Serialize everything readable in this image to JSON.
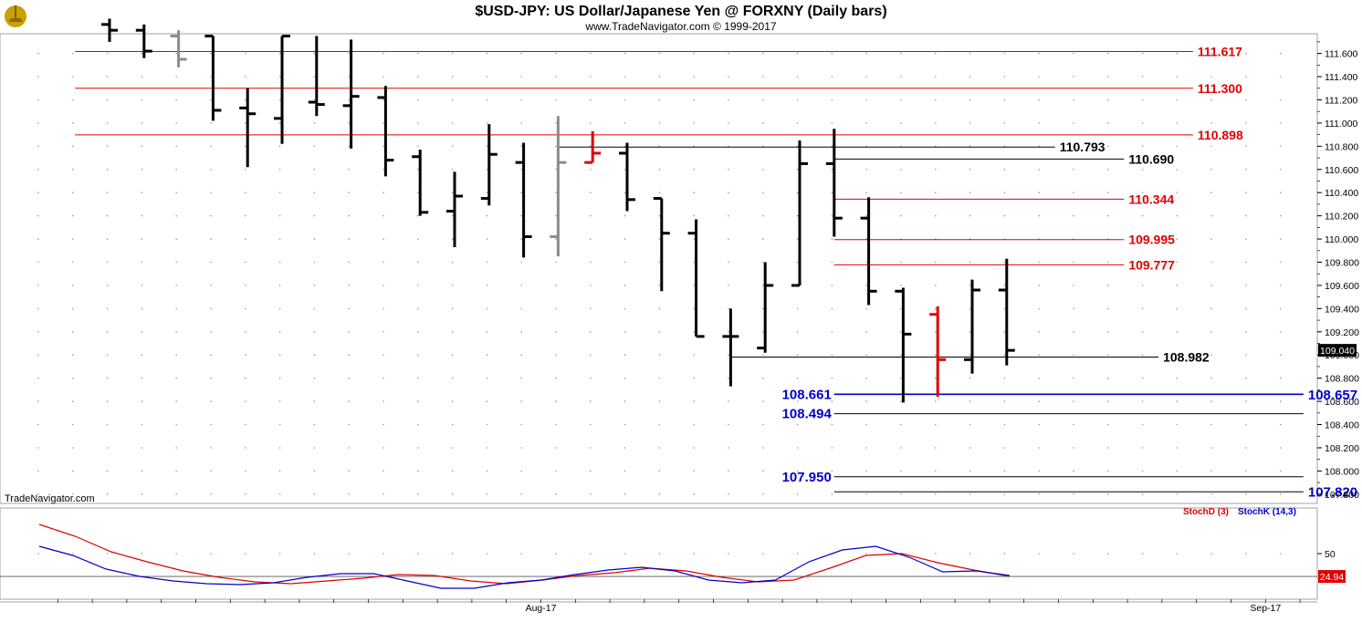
{
  "header": {
    "title": "$USD-JPY:  US Dollar/Japanese Yen @ FORXNY  (Daily bars)",
    "subtitle": "www.TradeNavigator.com © 1999-2017",
    "watermark": "TradeNavigator.com"
  },
  "colors": {
    "up": "#000000",
    "red": "#e00000",
    "gray": "#8c8c8c",
    "blue": "#0000cc",
    "stoch_d": "#dd0000",
    "stoch_k": "#0000cc"
  },
  "chart_data": [
    {
      "type": "ohlc",
      "title": "$USD-JPY:  US Dollar/Japanese Yen @ FORXNY  (Daily bars)",
      "ylim": [
        107.72,
        111.77
      ],
      "y_ticks": [
        "111.600",
        "111.400",
        "111.200",
        "111.000",
        "110.800",
        "110.600",
        "110.400",
        "110.200",
        "110.000",
        "109.800",
        "109.600",
        "109.400",
        "109.200",
        "109.000",
        "108.800",
        "108.600",
        "108.400",
        "108.200",
        "108.000",
        "107.800"
      ],
      "last_price": "109.040",
      "x_labels": [
        {
          "label": "Aug-17",
          "bar": 12.5
        },
        {
          "label": "Sep-17",
          "bar": 33.5
        }
      ],
      "bars": [
        {
          "o": 111.85,
          "h": 111.9,
          "l": 111.7,
          "c": 111.8,
          "color": "black"
        },
        {
          "o": 111.8,
          "h": 111.85,
          "l": 111.56,
          "c": 111.62,
          "color": "black"
        },
        {
          "o": 111.75,
          "h": 111.8,
          "l": 111.48,
          "c": 111.55,
          "color": "gray"
        },
        {
          "o": 111.75,
          "h": 111.75,
          "l": 111.02,
          "c": 111.11,
          "color": "black"
        },
        {
          "o": 111.13,
          "h": 111.3,
          "l": 110.62,
          "c": 111.08,
          "color": "black"
        },
        {
          "o": 111.04,
          "h": 111.75,
          "l": 110.82,
          "c": 111.75,
          "color": "black"
        },
        {
          "o": 111.18,
          "h": 111.75,
          "l": 111.06,
          "c": 111.16,
          "color": "black"
        },
        {
          "o": 111.15,
          "h": 111.72,
          "l": 110.78,
          "c": 111.23,
          "color": "black"
        },
        {
          "o": 111.22,
          "h": 111.32,
          "l": 110.54,
          "c": 110.68,
          "color": "black"
        },
        {
          "o": 110.71,
          "h": 110.77,
          "l": 110.2,
          "c": 110.23,
          "color": "black"
        },
        {
          "o": 110.24,
          "h": 110.58,
          "l": 109.93,
          "c": 110.37,
          "color": "black"
        },
        {
          "o": 110.35,
          "h": 110.99,
          "l": 110.29,
          "c": 110.73,
          "color": "black"
        },
        {
          "o": 110.66,
          "h": 110.83,
          "l": 109.84,
          "c": 110.02,
          "color": "black"
        },
        {
          "o": 110.02,
          "h": 111.06,
          "l": 109.85,
          "c": 110.66,
          "color": "gray"
        },
        {
          "o": 110.66,
          "h": 110.93,
          "l": 110.66,
          "c": 110.74,
          "color": "red"
        },
        {
          "o": 110.74,
          "h": 110.83,
          "l": 110.24,
          "c": 110.34,
          "color": "black"
        },
        {
          "o": 110.35,
          "h": 110.35,
          "l": 109.55,
          "c": 110.05,
          "color": "black"
        },
        {
          "o": 110.05,
          "h": 110.17,
          "l": 109.16,
          "c": 109.16,
          "color": "black"
        },
        {
          "o": 109.16,
          "h": 109.4,
          "l": 108.73,
          "c": 109.16,
          "color": "black"
        },
        {
          "o": 109.06,
          "h": 109.8,
          "l": 109.02,
          "c": 109.6,
          "color": "black"
        },
        {
          "o": 109.6,
          "h": 110.85,
          "l": 109.6,
          "c": 110.65,
          "color": "black"
        },
        {
          "o": 110.65,
          "h": 110.95,
          "l": 110.02,
          "c": 110.18,
          "color": "black"
        },
        {
          "o": 110.18,
          "h": 110.36,
          "l": 109.43,
          "c": 109.55,
          "color": "black"
        },
        {
          "o": 109.55,
          "h": 109.58,
          "l": 108.59,
          "c": 109.18,
          "color": "black"
        },
        {
          "o": 109.35,
          "h": 109.42,
          "l": 108.64,
          "c": 108.96,
          "color": "red"
        },
        {
          "o": 108.96,
          "h": 109.65,
          "l": 108.84,
          "c": 109.56,
          "color": "black"
        },
        {
          "o": 109.56,
          "h": 109.83,
          "l": 108.91,
          "c": 109.04,
          "color": "black"
        }
      ],
      "levels": [
        {
          "value": 111.617,
          "label": "111.617",
          "from_bar": -1,
          "to_bar": 31.4,
          "color": "red"
        },
        {
          "value": 111.3,
          "label": "111.300",
          "from_bar": -1,
          "to_bar": 31.4,
          "color": "red"
        },
        {
          "value": 110.898,
          "label": "110.898",
          "from_bar": -1,
          "to_bar": 31.4,
          "color": "red"
        },
        {
          "value": 110.793,
          "label": "110.793",
          "from_bar": 13,
          "to_bar": 27.4,
          "color": "black"
        },
        {
          "value": 110.69,
          "label": "110.690",
          "from_bar": 21,
          "to_bar": 29.4,
          "color": "black"
        },
        {
          "value": 110.344,
          "label": "110.344",
          "from_bar": 21,
          "to_bar": 29.4,
          "color": "red"
        },
        {
          "value": 109.995,
          "label": "109.995",
          "from_bar": 21,
          "to_bar": 29.4,
          "color": "red"
        },
        {
          "value": 109.777,
          "label": "109.777",
          "from_bar": 21,
          "to_bar": 29.4,
          "color": "red"
        },
        {
          "value": 108.982,
          "label": "108.982",
          "from_bar": 18,
          "to_bar": 30.4,
          "color": "black"
        },
        {
          "value": 108.661,
          "label": "108.661",
          "label_left": true,
          "from_bar": 21,
          "to_bar": 34.6,
          "color": "blue",
          "thick": true
        },
        {
          "value": 108.657,
          "label": "108.657",
          "from_bar": 21,
          "to_bar": 34.6,
          "color": "blue",
          "label_only_right": true
        },
        {
          "value": 108.494,
          "label": "108.494",
          "label_left": true,
          "from_bar": 21,
          "to_bar": 34.6,
          "color": "blue"
        },
        {
          "value": 107.95,
          "label": "107.950",
          "label_left": true,
          "from_bar": 21,
          "to_bar": 34.6,
          "color": "blue"
        },
        {
          "value": 107.82,
          "label": "107.820",
          "from_bar": 21,
          "to_bar": 34.6,
          "color": "blue"
        }
      ]
    },
    {
      "type": "line",
      "ylim": [
        0,
        100
      ],
      "y_ticks": [
        "50"
      ],
      "last_value": "24.94",
      "reference_line": 24.94,
      "legend": [
        "StochD (3)",
        "StochK (14,3)"
      ],
      "series": [
        {
          "name": "StochD (3)",
          "color": "red",
          "values": [
            82,
            69,
            52,
            41,
            31,
            24,
            19,
            17,
            20,
            23,
            27,
            26,
            20,
            17,
            21,
            26,
            29,
            34,
            31,
            24,
            19,
            21,
            34,
            48,
            50,
            40,
            32,
            25
          ]
        },
        {
          "name": "StochK (14,3)",
          "color": "blue",
          "values": [
            58,
            48,
            33,
            25,
            20,
            17,
            16,
            18,
            24,
            28,
            28,
            20,
            12,
            12,
            18,
            21,
            27,
            32,
            35,
            31,
            21,
            18,
            21,
            41,
            54,
            58,
            46,
            30,
            31,
            26
          ]
        }
      ]
    }
  ]
}
